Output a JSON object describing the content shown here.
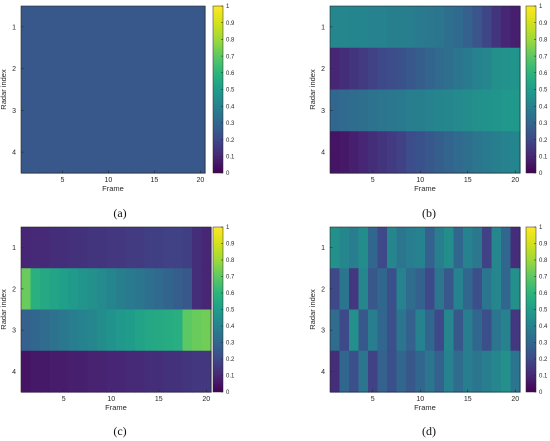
{
  "chart_data": [
    {
      "id": "a",
      "type": "heatmap",
      "panel_label": "(a)",
      "xlabel": "Frame",
      "ylabel": "Radar index",
      "x_ticks": [
        "5",
        "10",
        "15",
        "20"
      ],
      "x_tick_values": [
        5,
        10,
        15,
        20
      ],
      "y_ticks": [
        "1",
        "2",
        "3",
        "4"
      ],
      "colorbar_ticks": [
        "0",
        "0.1",
        "0.2",
        "0.3",
        "0.4",
        "0.5",
        "0.6",
        "0.7",
        "0.8",
        "0.9",
        "1"
      ],
      "clim": [
        0,
        1
      ],
      "colormap": "viridis",
      "frames": 20,
      "rows": 4,
      "values": [
        [
          0.25,
          0.25,
          0.25,
          0.25,
          0.25,
          0.25,
          0.25,
          0.25,
          0.25,
          0.25,
          0.25,
          0.25,
          0.25,
          0.25,
          0.25,
          0.25,
          0.25,
          0.25,
          0.25,
          0.25
        ],
        [
          0.25,
          0.25,
          0.25,
          0.25,
          0.25,
          0.25,
          0.25,
          0.25,
          0.25,
          0.25,
          0.25,
          0.25,
          0.25,
          0.25,
          0.25,
          0.25,
          0.25,
          0.25,
          0.25,
          0.25
        ],
        [
          0.25,
          0.25,
          0.25,
          0.25,
          0.25,
          0.25,
          0.25,
          0.25,
          0.25,
          0.25,
          0.25,
          0.25,
          0.25,
          0.25,
          0.25,
          0.25,
          0.25,
          0.25,
          0.25,
          0.25
        ],
        [
          0.25,
          0.25,
          0.25,
          0.25,
          0.25,
          0.25,
          0.25,
          0.25,
          0.25,
          0.25,
          0.25,
          0.25,
          0.25,
          0.25,
          0.25,
          0.25,
          0.25,
          0.25,
          0.25,
          0.25
        ]
      ]
    },
    {
      "id": "b",
      "type": "heatmap",
      "panel_label": "(b)",
      "xlabel": "Frame",
      "ylabel": "Radar index",
      "x_ticks": [
        "5",
        "10",
        "15",
        "20"
      ],
      "x_tick_values": [
        5,
        10,
        15,
        20
      ],
      "y_ticks": [
        "1",
        "2",
        "3",
        "4"
      ],
      "colorbar_ticks": [
        "0",
        "0.1",
        "0.2",
        "0.3",
        "0.4",
        "0.5",
        "0.6",
        "0.7",
        "0.8",
        "0.9",
        "1"
      ],
      "clim": [
        0,
        1
      ],
      "colormap": "viridis",
      "frames": 20,
      "rows": 4,
      "values": [
        [
          0.42,
          0.42,
          0.41,
          0.41,
          0.4,
          0.4,
          0.39,
          0.39,
          0.38,
          0.37,
          0.36,
          0.35,
          0.33,
          0.31,
          0.28,
          0.24,
          0.19,
          0.14,
          0.1,
          0.08
        ],
        [
          0.1,
          0.12,
          0.14,
          0.16,
          0.18,
          0.2,
          0.21,
          0.23,
          0.25,
          0.27,
          0.29,
          0.31,
          0.33,
          0.35,
          0.37,
          0.4,
          0.42,
          0.45,
          0.46,
          0.47
        ],
        [
          0.3,
          0.31,
          0.32,
          0.33,
          0.34,
          0.35,
          0.36,
          0.37,
          0.38,
          0.39,
          0.4,
          0.41,
          0.42,
          0.43,
          0.44,
          0.45,
          0.46,
          0.47,
          0.48,
          0.48
        ],
        [
          0.05,
          0.06,
          0.08,
          0.1,
          0.12,
          0.14,
          0.16,
          0.18,
          0.21,
          0.23,
          0.25,
          0.27,
          0.29,
          0.31,
          0.33,
          0.35,
          0.37,
          0.39,
          0.4,
          0.41
        ]
      ]
    },
    {
      "id": "c",
      "type": "heatmap",
      "panel_label": "(c)",
      "xlabel": "Frame",
      "ylabel": "Radar index",
      "x_ticks": [
        "5",
        "10",
        "15",
        "20"
      ],
      "x_tick_values": [
        5,
        10,
        15,
        20
      ],
      "y_ticks": [
        "1",
        "2",
        "3",
        "4"
      ],
      "colorbar_ticks": [
        "0",
        "0.1",
        "0.2",
        "0.3",
        "0.4",
        "0.5",
        "0.6",
        "0.7",
        "0.8",
        "0.9",
        "1"
      ],
      "clim": [
        0,
        1
      ],
      "colormap": "viridis",
      "frames": 20,
      "rows": 4,
      "values": [
        [
          0.1,
          0.11,
          0.11,
          0.12,
          0.12,
          0.13,
          0.13,
          0.14,
          0.14,
          0.15,
          0.15,
          0.16,
          0.16,
          0.17,
          0.17,
          0.18,
          0.18,
          0.17,
          0.12,
          0.1
        ],
        [
          0.72,
          0.58,
          0.55,
          0.53,
          0.51,
          0.49,
          0.47,
          0.45,
          0.43,
          0.41,
          0.39,
          0.37,
          0.35,
          0.33,
          0.31,
          0.29,
          0.27,
          0.25,
          0.12,
          0.1
        ],
        [
          0.28,
          0.3,
          0.32,
          0.34,
          0.36,
          0.38,
          0.4,
          0.42,
          0.44,
          0.46,
          0.48,
          0.5,
          0.52,
          0.54,
          0.55,
          0.56,
          0.57,
          0.7,
          0.72,
          0.73
        ],
        [
          0.05,
          0.06,
          0.06,
          0.07,
          0.07,
          0.08,
          0.08,
          0.09,
          0.09,
          0.1,
          0.1,
          0.11,
          0.11,
          0.12,
          0.12,
          0.13,
          0.13,
          0.14,
          0.15,
          0.15
        ]
      ]
    },
    {
      "id": "d",
      "type": "heatmap",
      "panel_label": "(d)",
      "xlabel": "Frame",
      "ylabel": "Radar index",
      "x_ticks": [
        "5",
        "10",
        "15",
        "20"
      ],
      "x_tick_values": [
        5,
        10,
        15,
        20
      ],
      "y_ticks": [
        "1",
        "2",
        "3",
        "4"
      ],
      "colorbar_ticks": [
        "0",
        "0.1",
        "0.2",
        "0.3",
        "0.4",
        "0.5",
        "0.6",
        "0.7",
        "0.8",
        "0.9",
        "1"
      ],
      "clim": [
        0,
        1
      ],
      "colormap": "viridis",
      "frames": 20,
      "rows": 4,
      "values": [
        [
          0.45,
          0.42,
          0.38,
          0.44,
          0.3,
          0.2,
          0.42,
          0.35,
          0.38,
          0.4,
          0.28,
          0.38,
          0.44,
          0.3,
          0.4,
          0.36,
          0.18,
          0.42,
          0.3,
          0.12
        ],
        [
          0.2,
          0.35,
          0.15,
          0.42,
          0.25,
          0.3,
          0.22,
          0.4,
          0.32,
          0.28,
          0.2,
          0.35,
          0.25,
          0.4,
          0.3,
          0.22,
          0.35,
          0.42,
          0.3,
          0.45
        ],
        [
          0.32,
          0.2,
          0.45,
          0.25,
          0.38,
          0.3,
          0.22,
          0.35,
          0.28,
          0.4,
          0.3,
          0.2,
          0.42,
          0.25,
          0.38,
          0.3,
          0.22,
          0.35,
          0.4,
          0.15
        ],
        [
          0.12,
          0.3,
          0.22,
          0.35,
          0.18,
          0.28,
          0.22,
          0.3,
          0.25,
          0.3,
          0.35,
          0.28,
          0.4,
          0.32,
          0.38,
          0.35,
          0.38,
          0.42,
          0.45,
          0.35
        ]
      ]
    }
  ]
}
